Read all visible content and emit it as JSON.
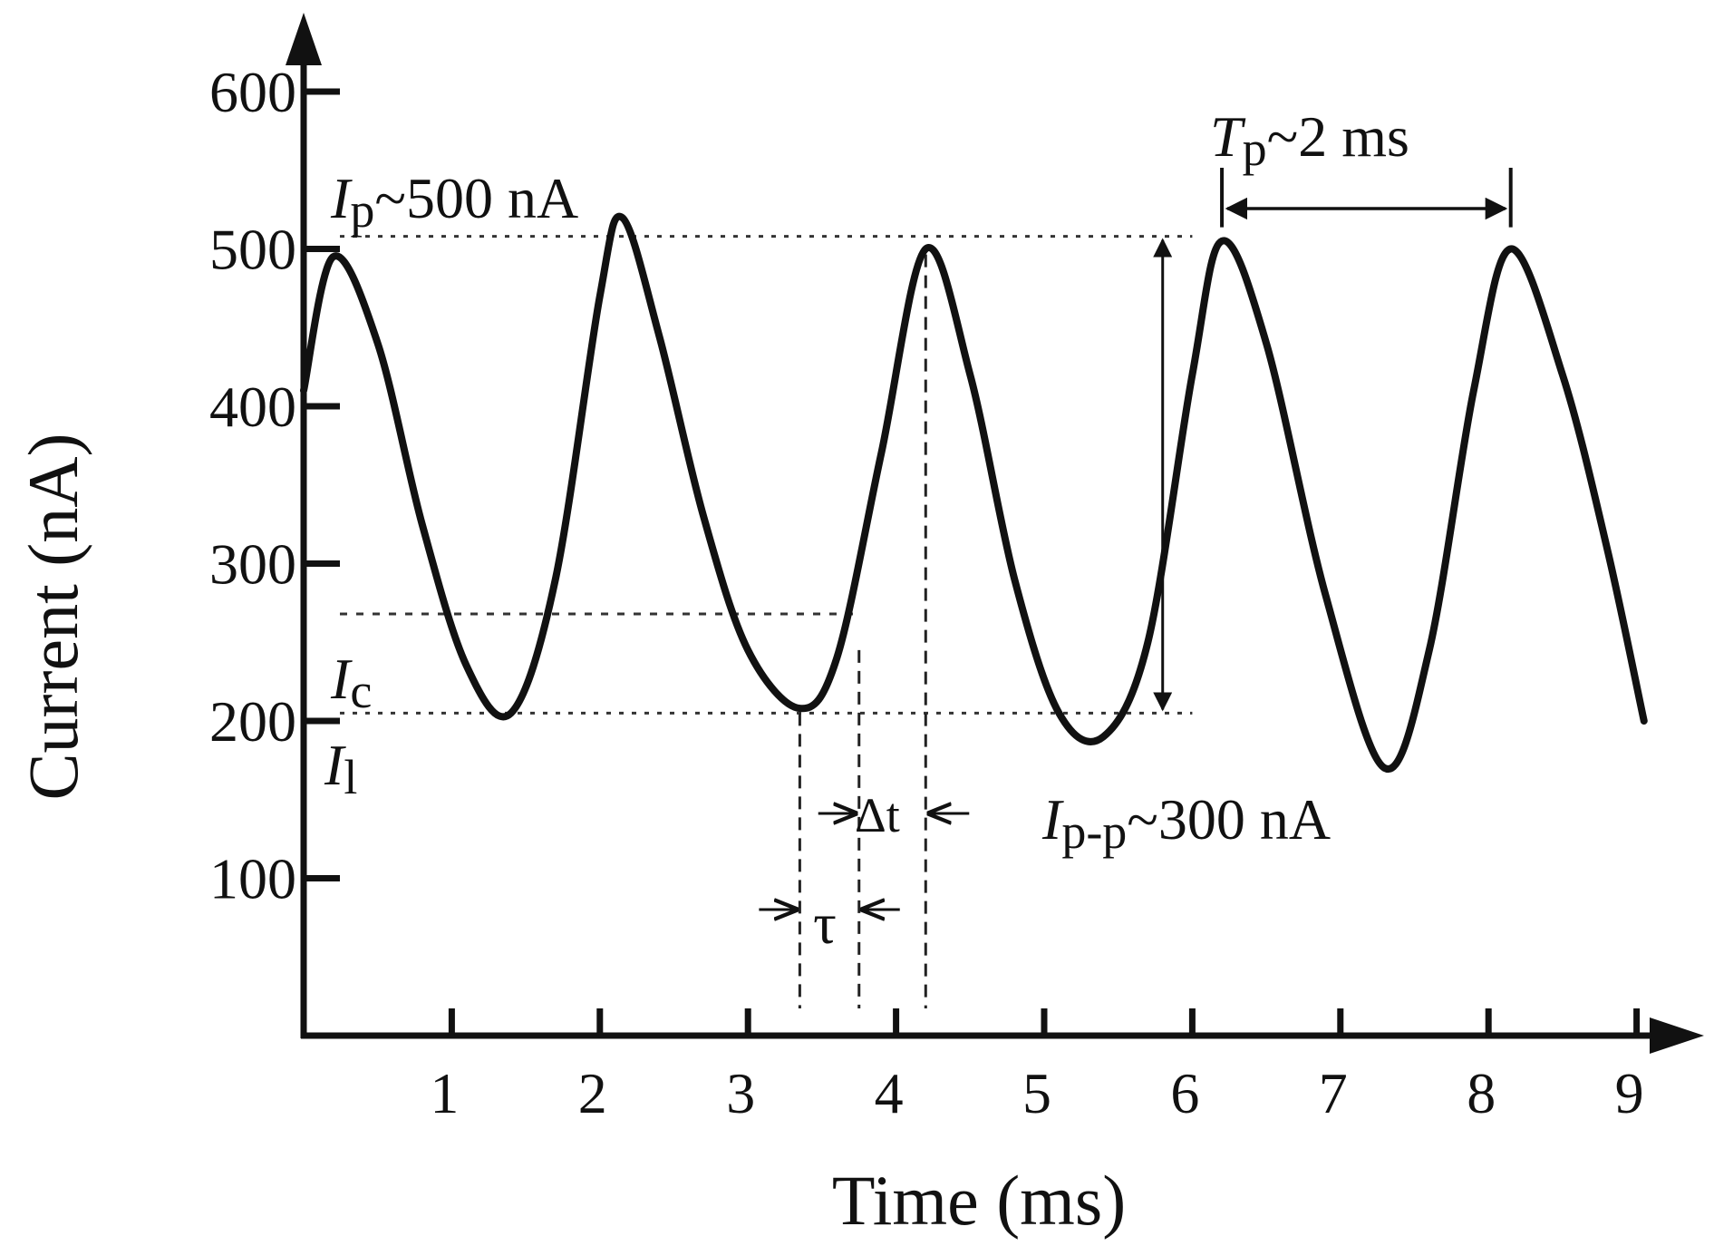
{
  "chart_data": {
    "type": "line",
    "xlabel": "Time (ms)",
    "ylabel": "Current (nA)",
    "xlim": [
      0,
      9.2
    ],
    "ylim": [
      0,
      640
    ],
    "x_ticks": [
      1,
      2,
      3,
      4,
      5,
      6,
      7,
      8,
      9
    ],
    "y_ticks": [
      100,
      200,
      300,
      400,
      500,
      600
    ],
    "grid": false,
    "legend": "none",
    "line_color": "#111111",
    "series": [
      {
        "x": [
          0.0,
          0.2,
          0.5,
          0.8,
          1.1,
          1.4,
          1.7,
          2.0,
          2.15,
          2.4,
          2.7,
          3.0,
          3.35,
          3.6,
          3.9,
          4.2,
          4.5,
          4.8,
          5.1,
          5.4,
          5.7,
          6.0,
          6.2,
          6.5,
          6.9,
          7.3,
          7.6,
          7.9,
          8.15,
          8.5,
          8.8,
          9.05
        ],
        "y": [
          410,
          495,
          440,
          325,
          235,
          205,
          290,
          470,
          520,
          445,
          330,
          245,
          208,
          240,
          370,
          500,
          420,
          290,
          205,
          190,
          250,
          420,
          505,
          440,
          280,
          170,
          245,
          410,
          500,
          420,
          310,
          200
        ]
      }
    ],
    "reference_lines": {
      "peak_level": 508,
      "low_level": 205,
      "threshold_level": 268,
      "tau_start": 3.35,
      "tau_end": 3.75,
      "dt_end": 4.2,
      "period_start": 6.2,
      "period_end": 8.15,
      "pp_x": 5.8
    },
    "annotations": {
      "ip_symbol": "I",
      "ip_sub": "p",
      "ip_text": "~500 nA",
      "tp_symbol": "T",
      "tp_sub": "p",
      "tp_text": "~2 ms",
      "ic_symbol": "I",
      "ic_sub": "c",
      "il_symbol": "I",
      "il_sub": "l",
      "dt_label": "Δt",
      "tau_label": "τ",
      "ipp_symbol": "I",
      "ipp_sub": "p-p",
      "ipp_text": "~300 nA"
    }
  }
}
